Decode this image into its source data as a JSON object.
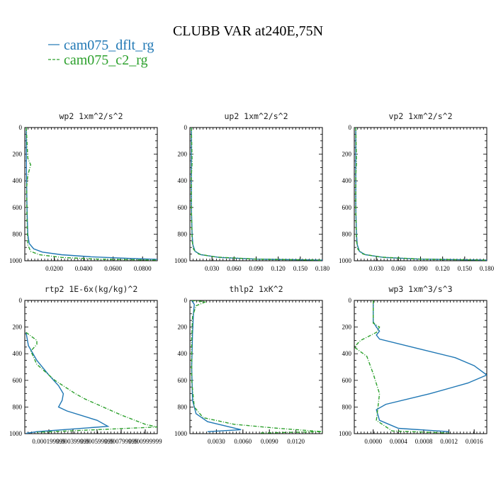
{
  "figure": {
    "title": "CLUBB VAR at240E,75N",
    "colors": {
      "cam075_dflt_rg": "#1f77b4",
      "cam075_c2_rg": "#2ca02c"
    }
  },
  "chart_data": [
    {
      "type": "line",
      "title": "wp2  1xm^2/s^2",
      "ylim": [
        1000,
        0
      ],
      "xlim": [
        0,
        0.09
      ],
      "yticks": [
        0,
        200,
        400,
        600,
        800,
        1000
      ],
      "xtick_labels": [
        "0.0200",
        "0.0400",
        "0.0600",
        "0.0800"
      ],
      "xtick_values": [
        0.02,
        0.04,
        0.06,
        0.08
      ],
      "series": [
        {
          "name": "cam075_dflt_rg",
          "x": [
            0.001,
            0.001,
            0.0012,
            0.0015,
            0.002,
            0.003,
            0.006,
            0.012,
            0.025,
            0.045,
            0.07,
            0.09
          ],
          "y": [
            0,
            200,
            400,
            600,
            800,
            870,
            910,
            935,
            955,
            970,
            982,
            990
          ]
        },
        {
          "name": "cam075_c2_rg",
          "x": [
            0.001,
            0.002,
            0.004,
            0.002,
            0.0012,
            0.0015,
            0.002,
            0.004,
            0.01,
            0.025,
            0.05,
            0.09
          ],
          "y": [
            0,
            230,
            280,
            360,
            450,
            700,
            880,
            930,
            955,
            975,
            988,
            995
          ]
        }
      ]
    },
    {
      "type": "line",
      "title": "up2  1xm^2/s^2",
      "ylim": [
        1000,
        0
      ],
      "xlim": [
        0,
        0.18
      ],
      "yticks": [
        0,
        200,
        400,
        600,
        800,
        1000
      ],
      "xtick_labels": [
        "0.030",
        "0.060",
        "0.090",
        "0.120",
        "0.150",
        "0.180"
      ],
      "xtick_values": [
        0.03,
        0.06,
        0.09,
        0.12,
        0.15,
        0.18
      ],
      "series": [
        {
          "name": "cam075_dflt_rg",
          "x": [
            0.002,
            0.002,
            0.002,
            0.003,
            0.004,
            0.007,
            0.015,
            0.04,
            0.09,
            0.18
          ],
          "y": [
            0,
            300,
            600,
            800,
            880,
            930,
            955,
            975,
            988,
            995
          ]
        },
        {
          "name": "cam075_c2_rg",
          "x": [
            0.002,
            0.003,
            0.002,
            0.002,
            0.003,
            0.005,
            0.012,
            0.035,
            0.09,
            0.18
          ],
          "y": [
            0,
            260,
            360,
            600,
            850,
            915,
            950,
            972,
            988,
            996
          ]
        }
      ]
    },
    {
      "type": "line",
      "title": "vp2  1xm^2/s^2",
      "ylim": [
        1000,
        0
      ],
      "xlim": [
        0,
        0.18
      ],
      "yticks": [
        0,
        200,
        400,
        600,
        800,
        1000
      ],
      "xtick_labels": [
        "0.030",
        "0.060",
        "0.090",
        "0.120",
        "0.150",
        "0.180"
      ],
      "xtick_values": [
        0.03,
        0.06,
        0.09,
        0.12,
        0.15,
        0.18
      ],
      "series": [
        {
          "name": "cam075_dflt_rg",
          "x": [
            0.002,
            0.002,
            0.002,
            0.003,
            0.004,
            0.007,
            0.015,
            0.04,
            0.09,
            0.18
          ],
          "y": [
            0,
            300,
            600,
            800,
            880,
            930,
            955,
            975,
            988,
            995
          ]
        },
        {
          "name": "cam075_c2_rg",
          "x": [
            0.002,
            0.003,
            0.002,
            0.002,
            0.003,
            0.005,
            0.012,
            0.035,
            0.09,
            0.18
          ],
          "y": [
            0,
            260,
            360,
            600,
            850,
            915,
            950,
            972,
            988,
            996
          ]
        }
      ]
    },
    {
      "type": "line",
      "title": "rtp2  1E-6x(kg/kg)^2",
      "ylim": [
        1000,
        0
      ],
      "xlim": [
        0,
        0.0011
      ],
      "yticks": [
        0,
        200,
        400,
        600,
        800,
        1000
      ],
      "xtick_labels": [
        "0.000199999",
        "0.000399999",
        "0.000599999",
        "0.000799999",
        "0.000999999"
      ],
      "xtick_values": [
        0.0002,
        0.0004,
        0.0006,
        0.0008,
        0.001
      ],
      "series": [
        {
          "name": "cam075_dflt_rg",
          "x": [
            1e-05,
            3e-05,
            0.0001,
            0.0002,
            0.00028,
            0.00032,
            0.00031,
            0.00028,
            0.00035,
            0.0006,
            0.00069,
            0.00055,
            0.0001,
            1e-05
          ],
          "y": [
            240,
            340,
            450,
            560,
            640,
            700,
            750,
            800,
            830,
            900,
            945,
            955,
            985,
            998
          ]
        },
        {
          "name": "cam075_c2_rg",
          "x": [
            1e-05,
            0.0001,
            0.0001,
            5e-05,
            0.0001,
            0.00025,
            0.00042,
            0.0005,
            0.0008,
            0.001,
            0.0011,
            0.0006,
            0.0001
          ],
          "y": [
            240,
            300,
            330,
            380,
            480,
            600,
            700,
            740,
            860,
            930,
            950,
            970,
            990
          ]
        }
      ]
    },
    {
      "type": "line",
      "title": "thlp2  1xK^2",
      "ylim": [
        1000,
        0
      ],
      "xlim": [
        0,
        0.015
      ],
      "yticks": [
        0,
        200,
        400,
        600,
        800,
        1000
      ],
      "xtick_labels": [
        "0.0030",
        "0.0060",
        "0.0090",
        "0.0120"
      ],
      "xtick_values": [
        0.003,
        0.006,
        0.009,
        0.012
      ],
      "series": [
        {
          "name": "cam075_dflt_rg",
          "x": [
            0.0002,
            0.0005,
            0.0004,
            0.0003,
            0.0002,
            0.0003,
            0.0007,
            0.002,
            0.0045,
            0.0058,
            0.002
          ],
          "y": [
            0,
            30,
            100,
            250,
            500,
            750,
            850,
            910,
            950,
            970,
            985
          ]
        },
        {
          "name": "cam075_c2_rg",
          "x": [
            0.0002,
            0.0018,
            0.0007,
            0.0003,
            0.0002,
            0.0002,
            0.0005,
            0.0015,
            0.005,
            0.01,
            0.015,
            0.008
          ],
          "y": [
            0,
            10,
            40,
            120,
            300,
            600,
            800,
            880,
            930,
            960,
            985,
            995
          ]
        }
      ]
    },
    {
      "type": "line",
      "title": "wp3  1xm^3/s^3",
      "ylim": [
        1000,
        0
      ],
      "xlim": [
        -0.0003,
        0.0018
      ],
      "yticks": [
        0,
        200,
        400,
        600,
        800,
        1000
      ],
      "xtick_labels": [
        "0.0000",
        "0.0004",
        "0.0008",
        "0.0012",
        "0.0016"
      ],
      "xtick_values": [
        0.0,
        0.0004,
        0.0008,
        0.0012,
        0.0016
      ],
      "series": [
        {
          "name": "cam075_dflt_rg",
          "x": [
            0.0,
            0.0,
            5e-05,
            0.0001,
            5e-05,
            0.0001,
            0.0007,
            0.0013,
            0.0016,
            0.0018,
            0.0015,
            0.0009,
            0.0002,
            5e-05,
            0.0001,
            0.0004,
            0.0012
          ],
          "y": [
            0,
            160,
            200,
            230,
            260,
            290,
            360,
            430,
            490,
            560,
            620,
            700,
            780,
            820,
            900,
            960,
            985
          ]
        },
        {
          "name": "cam075_c2_rg",
          "x": [
            0.0,
            0.0,
            0.0001,
            5e-05,
            -0.0002,
            -0.0003,
            -0.0001,
            0.0,
            0.0001,
            5e-05,
            0.0003,
            0.0012
          ],
          "y": [
            0,
            170,
            200,
            240,
            300,
            350,
            420,
            550,
            700,
            900,
            980,
            995
          ]
        }
      ]
    }
  ]
}
